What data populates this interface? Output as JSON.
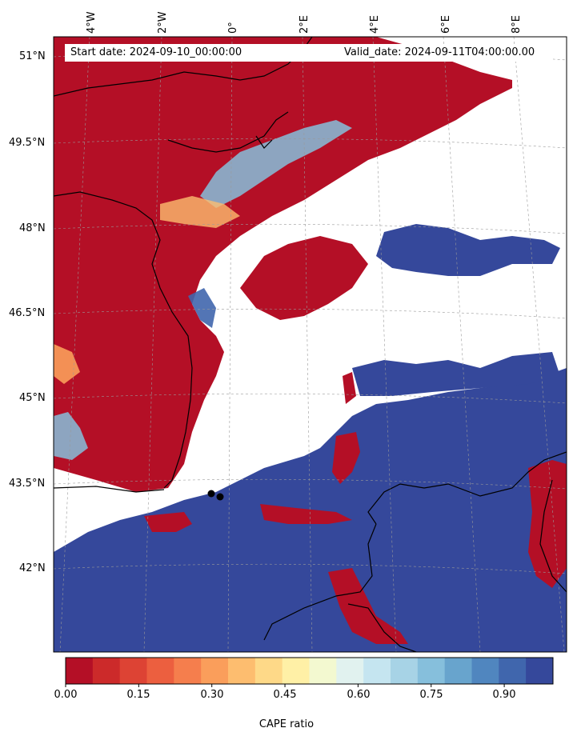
{
  "map": {
    "start_label": "Start date: 2024-09-10_00:00:00",
    "valid_label": "Valid_date: 2024-09-11T04:00:00.00",
    "lon_labels": [
      "4°W",
      "2°W",
      "0°",
      "2°E",
      "4°E",
      "6°E",
      "8°E"
    ],
    "lat_labels": [
      "51°N",
      "49.5°N",
      "48°N",
      "46.5°N",
      "45°N",
      "43.5°N",
      "42°N"
    ],
    "field_name": "CAPE ratio",
    "markers": 2
  },
  "colorbar": {
    "label": "CAPE ratio",
    "ticks": [
      "0.00",
      "0.15",
      "0.30",
      "0.45",
      "0.60",
      "0.75",
      "0.90"
    ],
    "colors": [
      "#b40f26",
      "#cc2a2a",
      "#dd4334",
      "#ec5f3f",
      "#f57e4d",
      "#fa9e5b",
      "#fdbd6f",
      "#fed988",
      "#fff0a6",
      "#f3f9d0",
      "#e1f2ef",
      "#c5e5f0",
      "#a7d3e6",
      "#86bfdc",
      "#68a4cd",
      "#5086bf",
      "#4066ad",
      "#35489b"
    ],
    "min": 0.0,
    "max": 1.0
  }
}
